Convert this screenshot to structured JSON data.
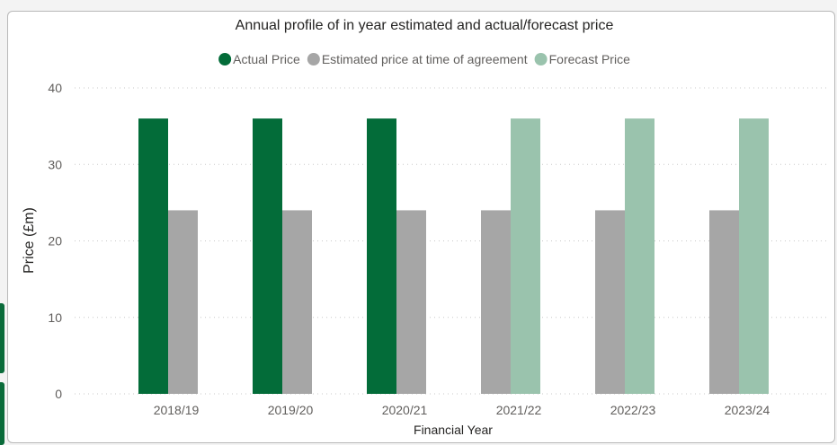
{
  "chart_data": {
    "type": "bar",
    "title": "Annual profile of in year estimated and actual/forecast price",
    "xlabel": "Financial Year",
    "ylabel": "Price (£m)",
    "ylim": [
      0,
      40
    ],
    "yticks": [
      0,
      10,
      20,
      30,
      40
    ],
    "grid": true,
    "legend_position": "top-center",
    "categories": [
      "2018/19",
      "2019/20",
      "2020/21",
      "2021/22",
      "2022/23",
      "2023/24"
    ],
    "series": [
      {
        "name": "Actual Price",
        "color": "#036c39",
        "values": [
          36,
          36,
          36,
          null,
          null,
          null
        ]
      },
      {
        "name": "Estimated price at time of agreement",
        "color": "#a6a6a6",
        "values": [
          24,
          24,
          24,
          24,
          24,
          24
        ]
      },
      {
        "name": "Forecast Price",
        "color": "#9ac3ad",
        "values": [
          null,
          null,
          null,
          36,
          36,
          36
        ]
      }
    ]
  }
}
